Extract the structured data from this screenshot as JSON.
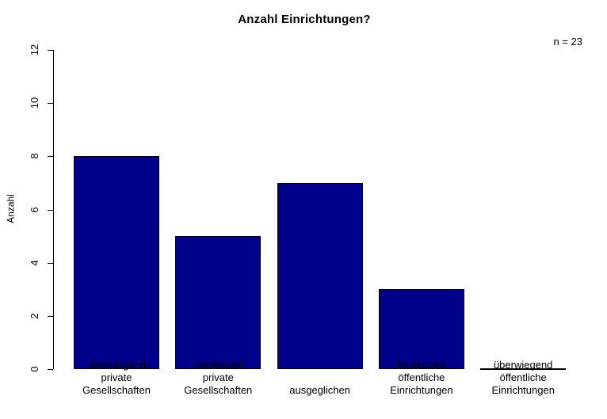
{
  "chart_data": {
    "type": "bar",
    "title": "Anzahl Einrichtungen?",
    "annotation": "n = 23",
    "ylabel": "Anzahl",
    "xlabel": "",
    "categories": [
      [
        "überwiegend",
        "private",
        "Gesellschaften"
      ],
      [
        "tendenziell",
        "private",
        "Gesellschaften"
      ],
      [
        "ausgeglichen"
      ],
      [
        "tendenziell",
        "öffentliche",
        "Einrichtungen"
      ],
      [
        "überwiegend",
        "öffentliche",
        "Einrichtungen"
      ]
    ],
    "values": [
      8,
      5,
      7,
      3,
      0
    ],
    "ylim": [
      0,
      12
    ],
    "yticks": [
      0,
      2,
      4,
      6,
      8,
      10,
      12
    ],
    "bar_color": "#00008B",
    "bar_border_color": "#000000",
    "text_color": "#000000",
    "grid": false,
    "legend": false
  }
}
